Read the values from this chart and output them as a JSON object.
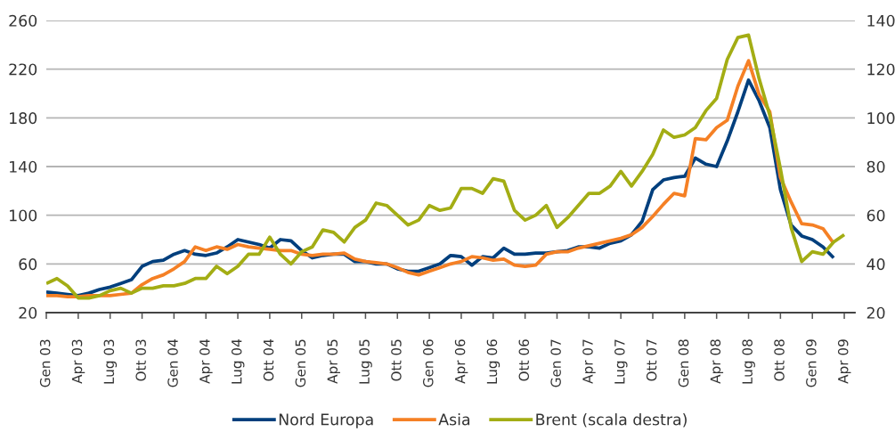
{
  "chart_data": {
    "type": "line",
    "categories": [
      "Gen 03",
      null,
      null,
      "Apr 03",
      null,
      null,
      "Lug 03",
      null,
      null,
      "Ott 03",
      null,
      null,
      "Gen 04",
      null,
      null,
      "Apr 04",
      null,
      null,
      "Lug 04",
      null,
      null,
      "Ott 04",
      null,
      null,
      "Gen 05",
      null,
      null,
      "Apr 05",
      null,
      null,
      "Lug 05",
      null,
      null,
      "Ott 05",
      null,
      null,
      "Gen 06",
      null,
      null,
      "Apr 06",
      null,
      null,
      "Lug 06",
      null,
      null,
      "Ott 06",
      null,
      null,
      "Gen 07",
      null,
      null,
      "Apr 07",
      null,
      null,
      "Lug 07",
      null,
      null,
      "Ott 07",
      null,
      null,
      "Gen 08",
      null,
      null,
      "Apr 08",
      null,
      null,
      "Lug 08",
      null,
      null,
      "Ott 08",
      null,
      null,
      "Gen 09",
      null,
      null,
      "Apr 09",
      null
    ],
    "series": [
      {
        "name": "Nord Europa",
        "color": "#003f7d",
        "values": [
          37,
          36,
          35,
          34,
          36,
          39,
          41,
          44,
          47,
          58,
          62,
          63,
          68,
          71,
          68,
          67,
          69,
          74,
          80,
          78,
          76,
          73,
          80,
          79,
          71,
          65,
          67,
          68,
          68,
          62,
          62,
          60,
          60,
          56,
          54,
          54,
          57,
          60,
          67,
          66,
          59,
          66,
          65,
          73,
          68,
          68,
          69,
          69,
          70,
          71,
          74,
          74,
          73,
          77,
          79,
          84,
          95,
          121,
          129,
          131,
          132,
          147,
          142,
          140,
          161,
          185,
          211,
          194,
          172,
          121,
          92,
          83,
          80,
          74,
          65,
          null,
          null
        ]
      },
      {
        "name": "Asia",
        "color": "#f58025",
        "values": [
          34,
          34,
          33,
          33,
          34,
          34,
          34,
          35,
          36,
          43,
          48,
          51,
          56,
          62,
          74,
          71,
          74,
          72,
          76,
          74,
          73,
          72,
          71,
          71,
          68,
          67,
          68,
          68,
          69,
          64,
          62,
          61,
          60,
          57,
          53,
          51,
          54,
          57,
          60,
          62,
          66,
          65,
          63,
          64,
          59,
          58,
          59,
          68,
          70,
          70,
          73,
          75,
          77,
          79,
          81,
          84,
          90,
          99,
          109,
          118,
          116,
          163,
          162,
          172,
          178,
          206,
          227,
          199,
          185,
          131,
          111,
          93,
          92,
          89,
          77,
          null,
          null
        ]
      },
      {
        "name": "Brent (scala destra)",
        "color": "#a3ad14",
        "axis": "y2",
        "values": [
          32,
          34,
          31,
          26,
          26,
          27,
          29,
          30,
          28,
          30,
          30,
          31,
          31,
          32,
          34,
          34,
          39,
          36,
          39,
          44,
          44,
          51,
          44,
          40,
          45,
          47,
          54,
          53,
          49,
          55,
          58,
          65,
          64,
          60,
          56,
          58,
          64,
          62,
          63,
          71,
          71,
          69,
          75,
          74,
          62,
          58,
          60,
          64,
          55,
          59,
          64,
          69,
          69,
          72,
          78,
          72,
          78,
          85,
          95,
          92,
          93,
          96,
          103,
          108,
          124,
          133,
          134,
          116,
          101,
          79,
          55,
          41,
          45,
          44,
          49,
          52,
          null
        ]
      }
    ],
    "ylim": [
      20,
      260
    ],
    "yticks": [
      20,
      60,
      100,
      140,
      180,
      220,
      260
    ],
    "y2lim": [
      20,
      140
    ],
    "y2ticks": [
      20,
      40,
      60,
      80,
      100,
      120,
      140
    ],
    "grid": "y",
    "legend": "bottom",
    "line_style": "solid"
  }
}
